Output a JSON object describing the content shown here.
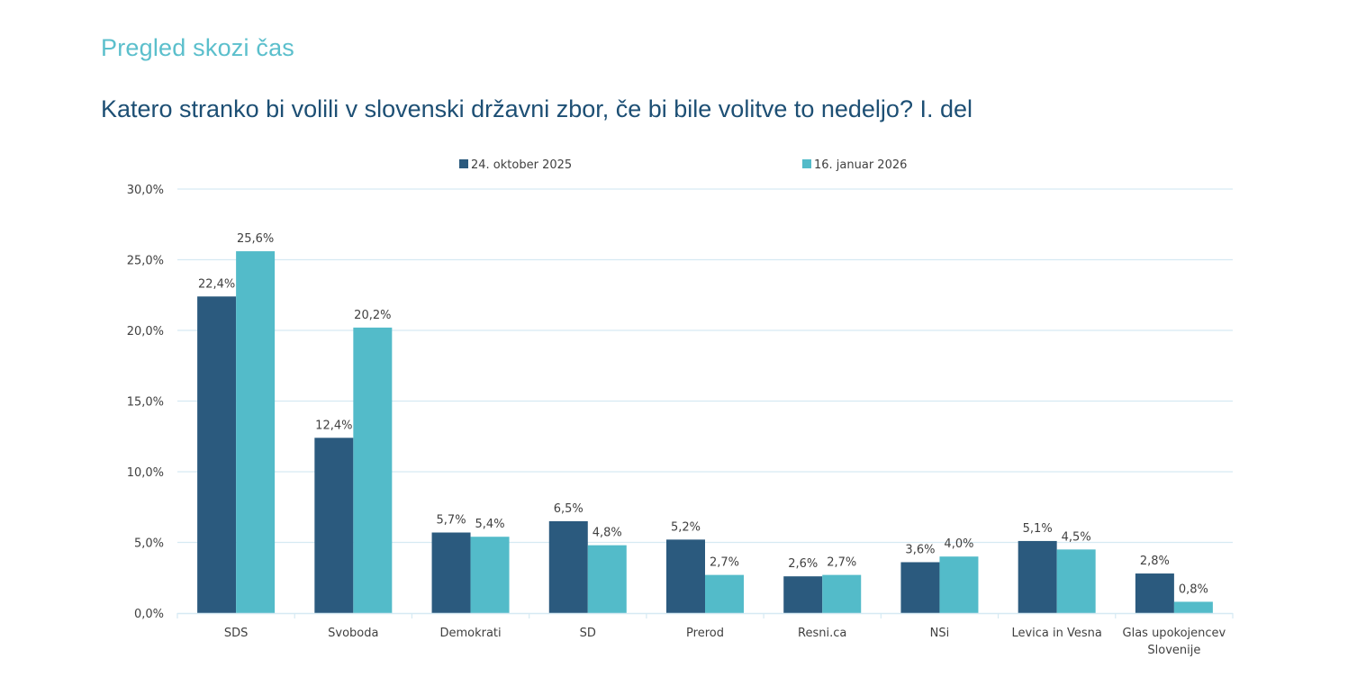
{
  "page": {
    "section_title": "Pregled skozi čas",
    "question": "Katero stranko bi volili v slovenski državni zbor, če bi bile volitve to nedeljo?",
    "question_suffix": " I. del"
  },
  "colors": {
    "series_1": "#2b5a7e",
    "series_2": "#53bbc9",
    "gridline": "#d6eaf3",
    "section_title": "#5bbfcc",
    "question": "#1d4f74"
  },
  "chart_data": {
    "type": "bar",
    "title": "Katero stranko bi volili v slovenski državni zbor, če bi bile volitve to nedeljo? I. del",
    "xlabel": "",
    "ylabel": "",
    "ylim": [
      0,
      30
    ],
    "yticks": [
      0,
      5,
      10,
      15,
      20,
      25,
      30
    ],
    "ytick_labels": [
      "0,0%",
      "5,0%",
      "10,0%",
      "15,0%",
      "20,0%",
      "25,0%",
      "30,0%"
    ],
    "grid": true,
    "legend_position": "top",
    "categories": [
      "SDS",
      "Svoboda",
      "Demokrati",
      "SD",
      "Prerod",
      "Resni.ca",
      "NSi",
      "Levica in Vesna",
      "Glas upokojencev Slovenije"
    ],
    "category_lines": [
      [
        "SDS"
      ],
      [
        "Svoboda"
      ],
      [
        "Demokrati"
      ],
      [
        "SD"
      ],
      [
        "Prerod"
      ],
      [
        "Resni.ca"
      ],
      [
        "NSi"
      ],
      [
        "Levica in Vesna"
      ],
      [
        "Glas upokojencev",
        "Slovenije"
      ]
    ],
    "series": [
      {
        "name": "24. oktober 2025",
        "values": [
          22.4,
          12.4,
          5.7,
          6.5,
          5.2,
          2.6,
          3.6,
          5.1,
          2.8
        ],
        "labels": [
          "22,4%",
          "12,4%",
          "5,7%",
          "6,5%",
          "5,2%",
          "2,6%",
          "3,6%",
          "5,1%",
          "2,8%"
        ]
      },
      {
        "name": "16. januar 2026",
        "values": [
          25.6,
          20.2,
          5.4,
          4.8,
          2.7,
          2.7,
          4.0,
          4.5,
          0.8
        ],
        "labels": [
          "25,6%",
          "20,2%",
          "5,4%",
          "4,8%",
          "2,7%",
          "2,7%",
          "4,0%",
          "4,5%",
          "0,8%"
        ]
      }
    ]
  }
}
